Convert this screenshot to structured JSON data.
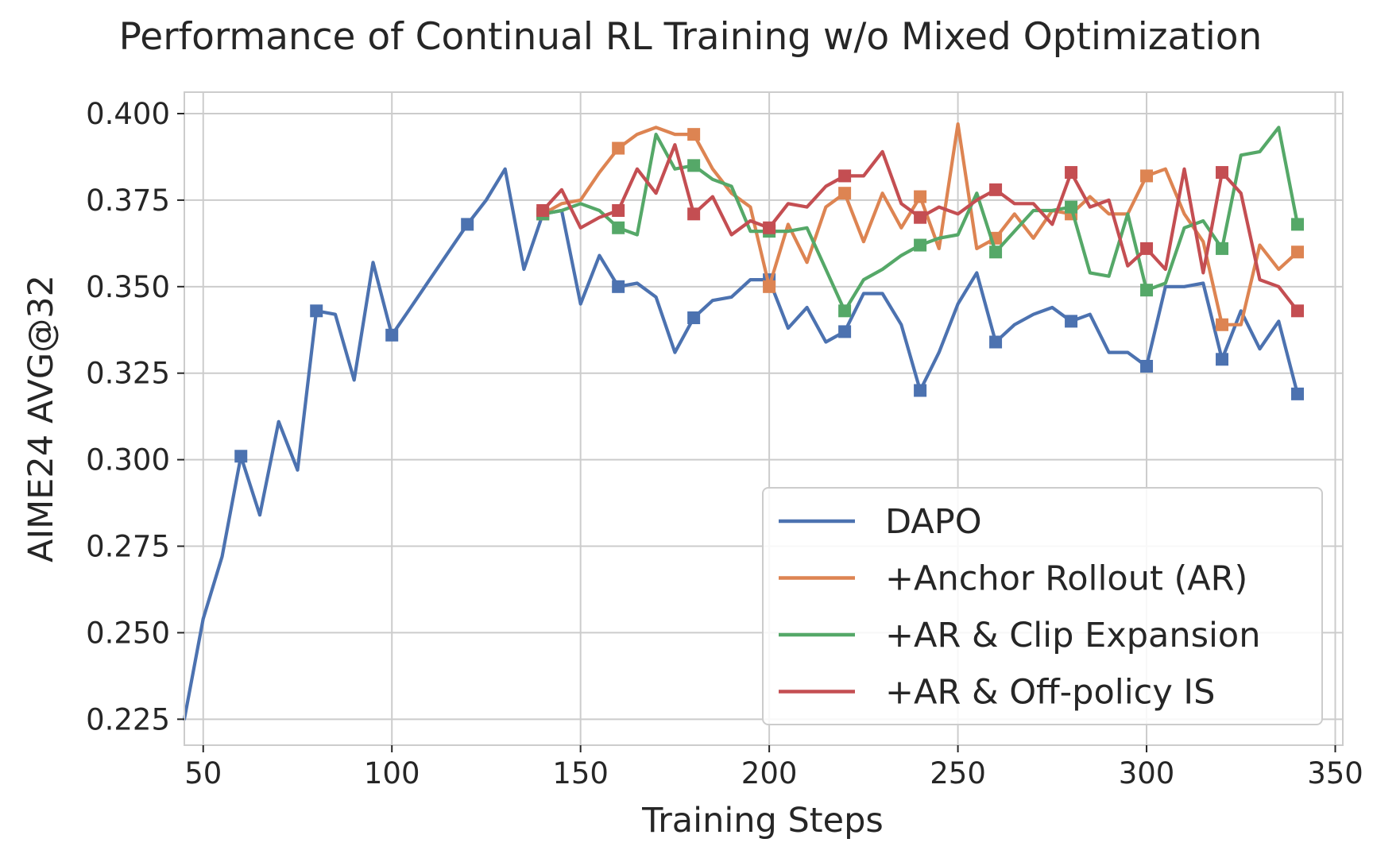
{
  "chart_data": {
    "type": "line",
    "title": "Performance of Continual RL Training w/o Mixed Optimization",
    "xlabel": "Training Steps",
    "ylabel": "AIME24 AVG@32",
    "xlim": [
      45,
      352
    ],
    "ylim": [
      0.2175,
      0.4062
    ],
    "xticks": [
      50,
      100,
      150,
      200,
      250,
      300,
      350
    ],
    "yticks": [
      0.225,
      0.25,
      0.275,
      0.3,
      0.325,
      0.35,
      0.375,
      0.4
    ],
    "xtick_labels": [
      "50",
      "100",
      "150",
      "200",
      "250",
      "300",
      "350"
    ],
    "ytick_labels": [
      "0.225",
      "0.250",
      "0.275",
      "0.300",
      "0.325",
      "0.350",
      "0.375",
      "0.400"
    ],
    "grid": true,
    "legend_position": "lower-right",
    "marker": "square every 20 steps",
    "series": [
      {
        "name": "DAPO",
        "color": "#4c72b0",
        "x": [
          45,
          50,
          55,
          60,
          65,
          70,
          75,
          80,
          85,
          90,
          95,
          100,
          105,
          110,
          115,
          120,
          125,
          130,
          135,
          140,
          145,
          150,
          155,
          160,
          165,
          170,
          175,
          180,
          185,
          190,
          195,
          200,
          205,
          210,
          215,
          220,
          225,
          230,
          235,
          240,
          245,
          250,
          255,
          260,
          265,
          270,
          275,
          280,
          285,
          290,
          295,
          300,
          305,
          310,
          315,
          320,
          325,
          330,
          335,
          340
        ],
        "y": [
          0.225,
          0.254,
          0.272,
          0.301,
          0.284,
          0.311,
          0.297,
          0.343,
          0.342,
          0.323,
          0.357,
          0.336,
          0.344,
          0.352,
          0.36,
          0.368,
          0.375,
          0.384,
          0.355,
          0.371,
          0.372,
          0.345,
          0.359,
          0.35,
          0.351,
          0.347,
          0.331,
          0.341,
          0.346,
          0.347,
          0.352,
          0.352,
          0.338,
          0.344,
          0.334,
          0.337,
          0.348,
          0.348,
          0.339,
          0.32,
          0.331,
          0.345,
          0.354,
          0.334,
          0.339,
          0.342,
          0.344,
          0.34,
          0.342,
          0.331,
          0.331,
          0.327,
          0.35,
          0.35,
          0.351,
          0.329,
          0.343,
          0.332,
          0.34,
          0.319
        ]
      },
      {
        "name": "+Anchor Rollout (AR)",
        "color": "#dd8452",
        "x": [
          140,
          145,
          150,
          155,
          160,
          165,
          170,
          175,
          180,
          185,
          190,
          195,
          200,
          205,
          210,
          215,
          220,
          225,
          230,
          235,
          240,
          245,
          250,
          255,
          260,
          265,
          270,
          275,
          280,
          285,
          290,
          295,
          300,
          305,
          310,
          315,
          320,
          325,
          330,
          335,
          340
        ],
        "y": [
          0.371,
          0.374,
          0.375,
          0.383,
          0.39,
          0.394,
          0.396,
          0.394,
          0.394,
          0.384,
          0.377,
          0.373,
          0.35,
          0.368,
          0.357,
          0.373,
          0.377,
          0.363,
          0.377,
          0.367,
          0.376,
          0.361,
          0.397,
          0.361,
          0.364,
          0.371,
          0.364,
          0.372,
          0.371,
          0.376,
          0.371,
          0.371,
          0.382,
          0.384,
          0.371,
          0.363,
          0.339,
          0.339,
          0.362,
          0.355,
          0.36
        ]
      },
      {
        "name": "+AR & Clip Expansion",
        "color": "#55a868",
        "x": [
          140,
          145,
          150,
          155,
          160,
          165,
          170,
          175,
          180,
          185,
          190,
          195,
          200,
          205,
          210,
          215,
          220,
          225,
          230,
          235,
          240,
          245,
          250,
          255,
          260,
          265,
          270,
          275,
          280,
          285,
          290,
          295,
          300,
          305,
          310,
          315,
          320,
          325,
          330,
          335,
          340
        ],
        "y": [
          0.371,
          0.372,
          0.374,
          0.372,
          0.367,
          0.365,
          0.394,
          0.384,
          0.385,
          0.381,
          0.379,
          0.366,
          0.366,
          0.366,
          0.367,
          0.355,
          0.343,
          0.352,
          0.355,
          0.359,
          0.362,
          0.364,
          0.365,
          0.377,
          0.36,
          0.366,
          0.372,
          0.372,
          0.373,
          0.354,
          0.353,
          0.371,
          0.349,
          0.351,
          0.367,
          0.369,
          0.361,
          0.388,
          0.389,
          0.396,
          0.368
        ]
      },
      {
        "name": "+AR & Off-policy IS",
        "color": "#c44e52",
        "x": [
          140,
          145,
          150,
          155,
          160,
          165,
          170,
          175,
          180,
          185,
          190,
          195,
          200,
          205,
          210,
          215,
          220,
          225,
          230,
          235,
          240,
          245,
          250,
          255,
          260,
          265,
          270,
          275,
          280,
          285,
          290,
          295,
          300,
          305,
          310,
          315,
          320,
          325,
          330,
          335,
          340
        ],
        "y": [
          0.372,
          0.378,
          0.367,
          0.37,
          0.372,
          0.384,
          0.377,
          0.391,
          0.371,
          0.376,
          0.365,
          0.369,
          0.367,
          0.374,
          0.373,
          0.379,
          0.382,
          0.382,
          0.389,
          0.374,
          0.37,
          0.373,
          0.371,
          0.375,
          0.378,
          0.374,
          0.374,
          0.368,
          0.383,
          0.373,
          0.375,
          0.356,
          0.361,
          0.355,
          0.384,
          0.354,
          0.383,
          0.377,
          0.352,
          0.35,
          0.343
        ]
      }
    ]
  }
}
